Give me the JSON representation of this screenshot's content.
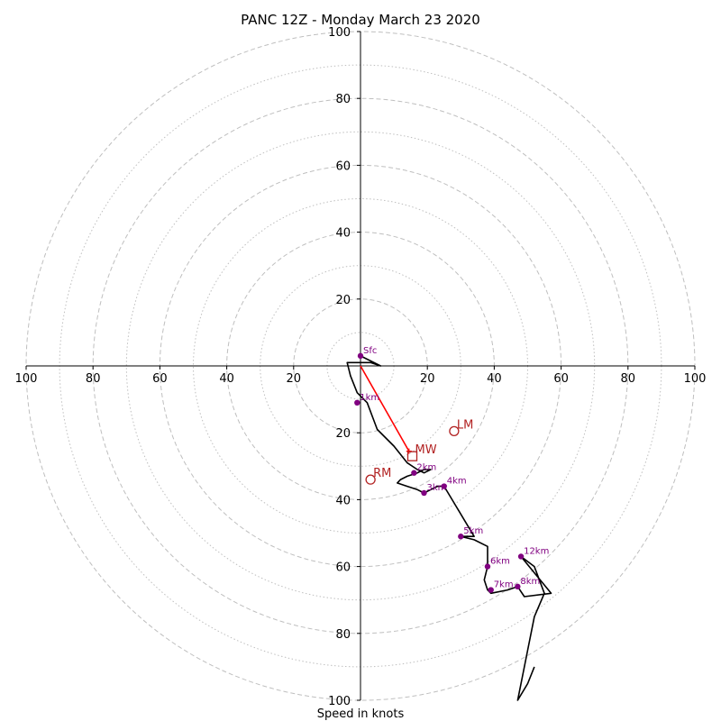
{
  "chart_data": {
    "type": "hodograph",
    "title": "PANC 12Z - Monday March 23 2020",
    "xlabel": "Speed in knots",
    "max_speed": 100,
    "x_tick_labels": [
      "100",
      "80",
      "60",
      "40",
      "20",
      "20",
      "40",
      "60",
      "80",
      "100"
    ],
    "x_tick_values": [
      -100,
      -80,
      -60,
      -40,
      -20,
      20,
      40,
      60,
      80,
      100
    ],
    "y_tick_labels": [
      "100",
      "80",
      "60",
      "40",
      "20",
      "20",
      "40",
      "60",
      "80",
      "100"
    ],
    "y_tick_values": [
      100,
      80,
      60,
      40,
      20,
      -20,
      -40,
      -60,
      -80,
      -100
    ],
    "rings_dashed": [
      20,
      40,
      60,
      80,
      100
    ],
    "rings_dotted": [
      10,
      30,
      50,
      70,
      90
    ],
    "trace": {
      "color": "#000000",
      "u": [
        0,
        6,
        3,
        -4,
        -3,
        -1,
        2,
        5,
        10,
        14,
        17,
        19,
        21,
        19,
        17,
        14,
        12,
        11,
        14,
        17,
        19,
        21,
        23,
        25,
        28,
        31,
        34,
        30,
        34,
        38,
        38,
        37,
        38,
        39,
        44,
        47,
        49,
        57,
        48,
        52,
        55,
        52,
        50,
        47,
        50,
        52
      ],
      "v": [
        3,
        0,
        1,
        1,
        -3,
        -8,
        -11,
        -19,
        -24,
        -29,
        -31,
        -32,
        -31,
        -31,
        -32,
        -33,
        -34,
        -35,
        -36,
        -37,
        -38,
        -37,
        -36,
        -36,
        -41,
        -46,
        -51,
        -51,
        -52,
        -54,
        -60,
        -64,
        -67,
        -68,
        -67,
        -66,
        -69,
        -68,
        -57,
        -60,
        -68,
        -75,
        -85,
        -100,
        -95,
        -90
      ]
    },
    "height_markers": [
      {
        "label": "Sfc",
        "u": 0,
        "v": 3
      },
      {
        "label": "1km",
        "u": -1,
        "v": -11
      },
      {
        "label": "2km",
        "u": 16,
        "v": -32
      },
      {
        "label": "3km",
        "u": 19,
        "v": -38
      },
      {
        "label": "4km",
        "u": 25,
        "v": -36
      },
      {
        "label": "5km",
        "u": 30,
        "v": -51
      },
      {
        "label": "6km",
        "u": 38,
        "v": -60
      },
      {
        "label": "7km",
        "u": 39,
        "v": -67
      },
      {
        "label": "8km",
        "u": 47,
        "v": -66
      },
      {
        "label": "12km",
        "u": 48,
        "v": -57
      }
    ],
    "motion_markers": [
      {
        "label": "LM",
        "u": 28,
        "v": -19.5,
        "shape": "circle"
      },
      {
        "label": "RM",
        "u": 3,
        "v": -34,
        "shape": "circle"
      },
      {
        "label": "MW",
        "u": 15.5,
        "v": -27,
        "shape": "square"
      }
    ],
    "shear_vector": {
      "u0": 0,
      "v0": 0,
      "u1": 14.5,
      "v1": -25.5
    },
    "colors": {
      "ring": "#bfbfbf",
      "axis": "#000000",
      "trace": "#000000",
      "height_marker": "#800080",
      "storm_motion": "#b22222",
      "shear_vector": "#ff0000"
    }
  }
}
